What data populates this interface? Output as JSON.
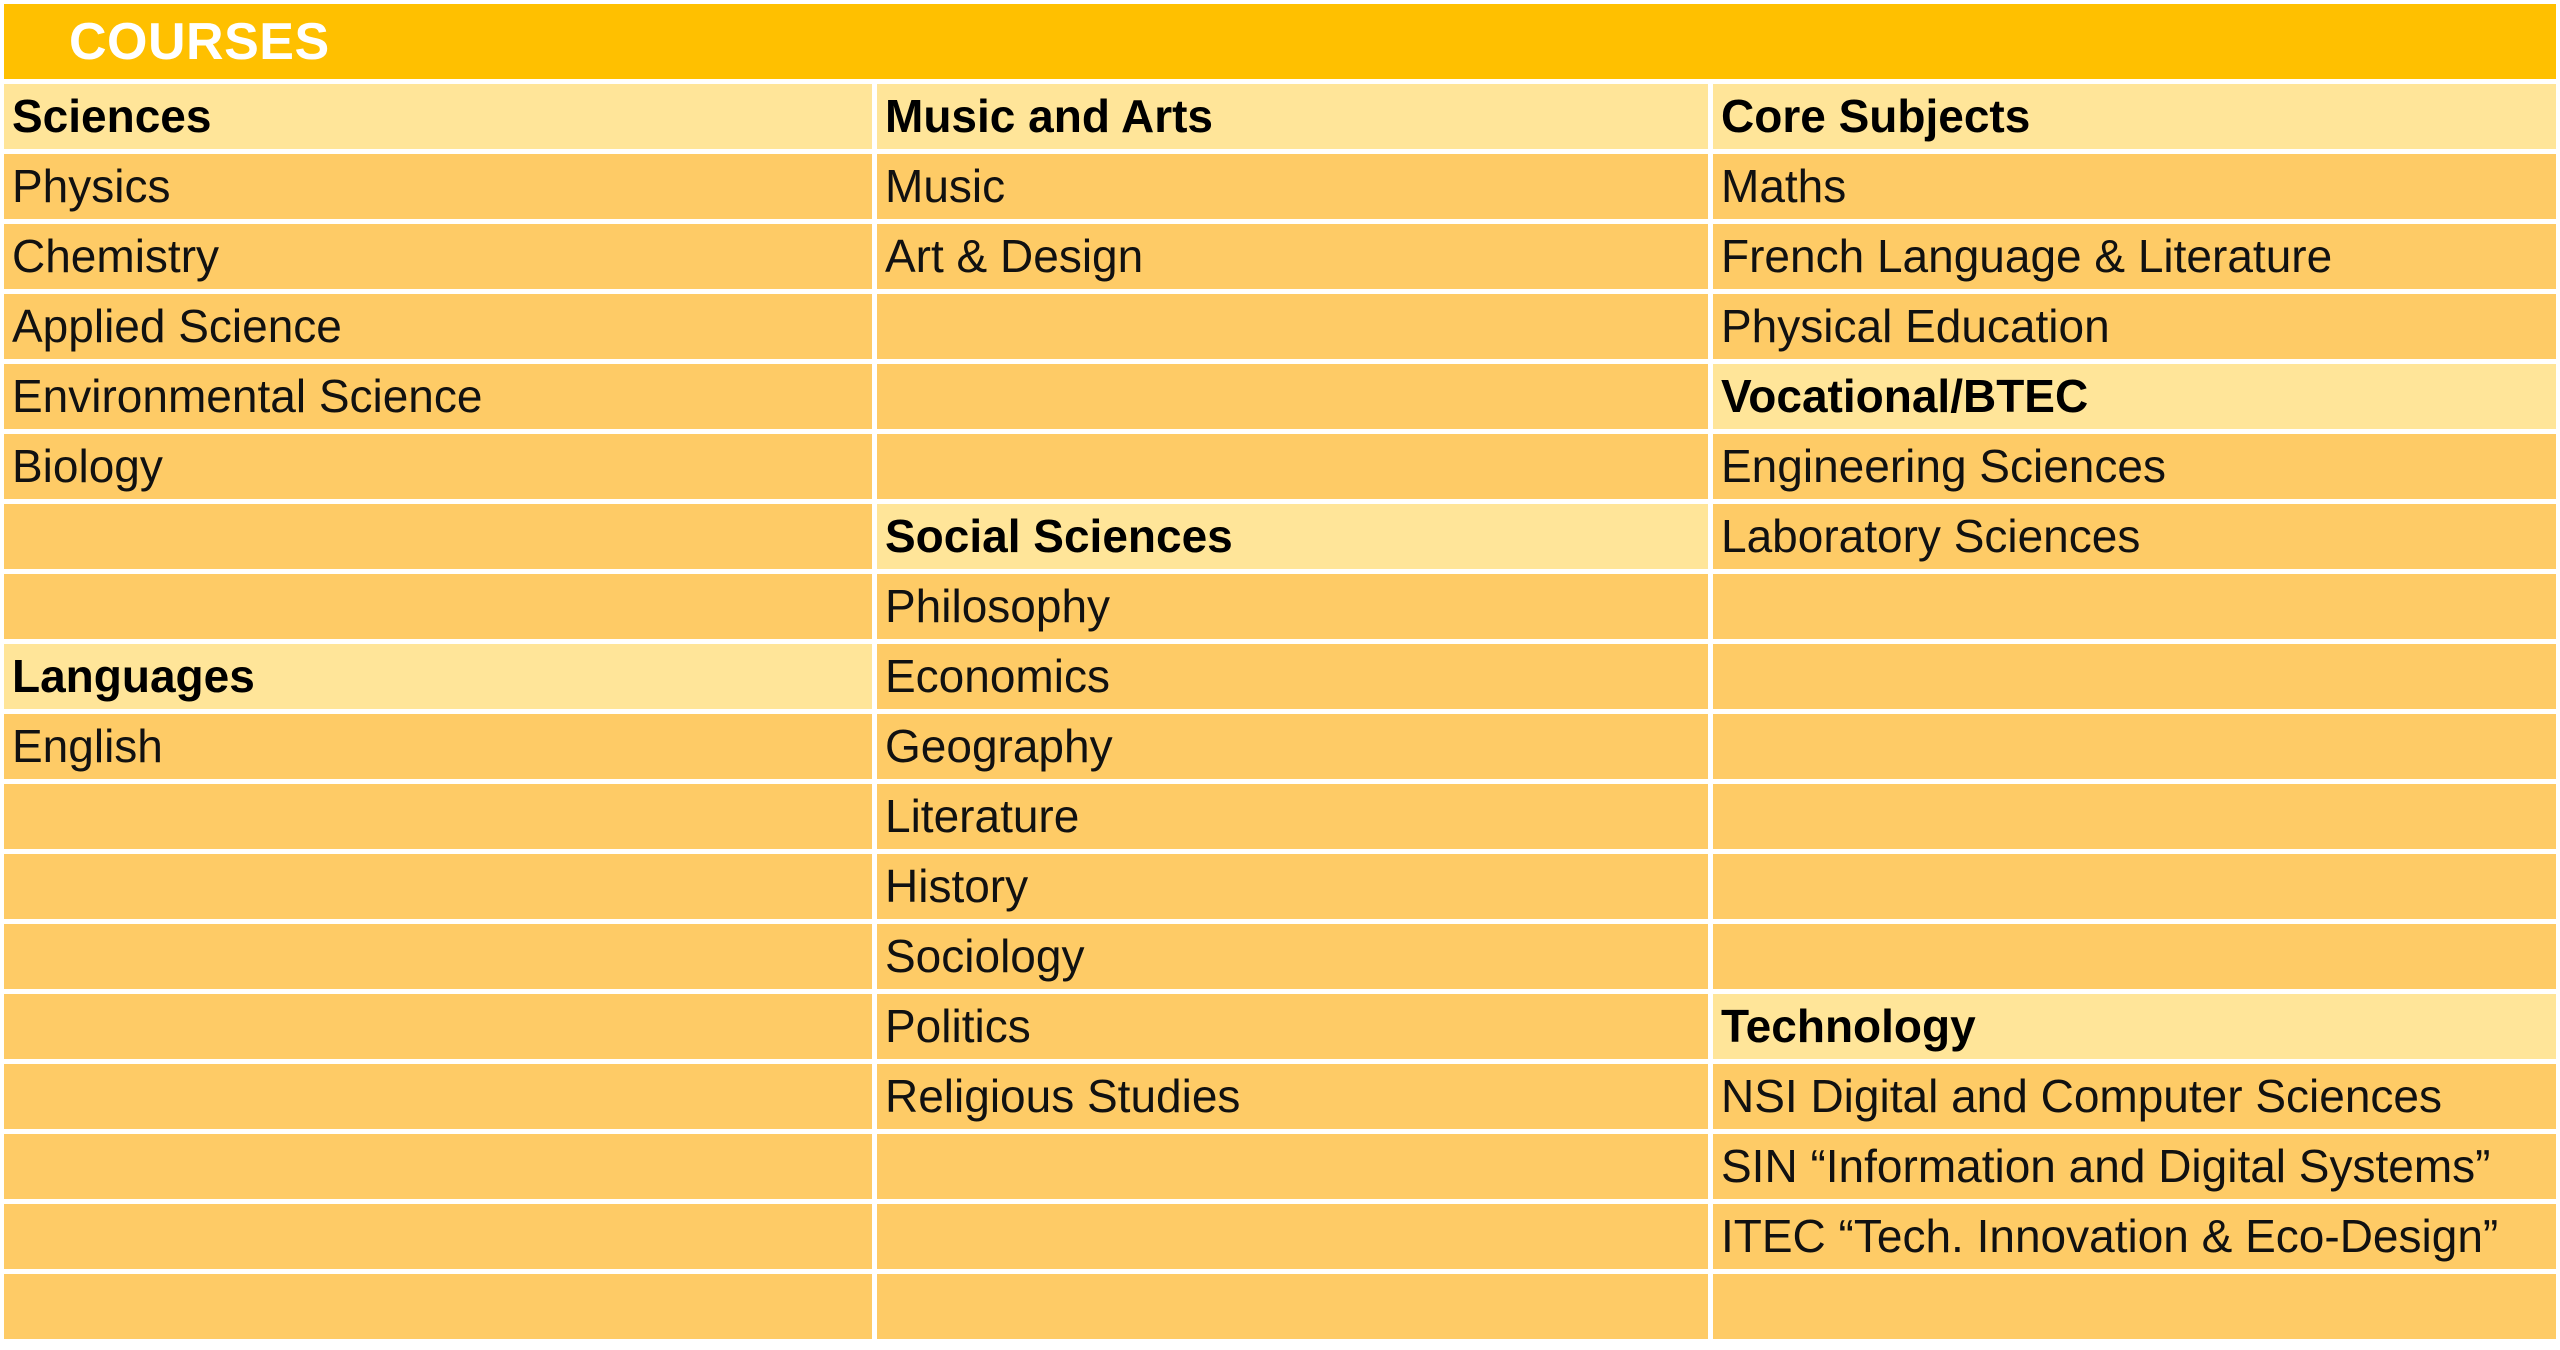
{
  "title": "COURSES",
  "rows": [
    [
      {
        "text": "Sciences",
        "heading": true
      },
      {
        "text": "Music and Arts",
        "heading": true
      },
      {
        "text": "Core Subjects",
        "heading": true
      }
    ],
    [
      {
        "text": "Physics"
      },
      {
        "text": "Music"
      },
      {
        "text": "Maths"
      }
    ],
    [
      {
        "text": "Chemistry"
      },
      {
        "text": "Art & Design"
      },
      {
        "text": "French Language & Literature"
      }
    ],
    [
      {
        "text": "Applied Science"
      },
      {
        "text": ""
      },
      {
        "text": "Physical Education"
      }
    ],
    [
      {
        "text": "Environmental Science"
      },
      {
        "text": ""
      },
      {
        "text": "Vocational/BTEC",
        "heading": true
      }
    ],
    [
      {
        "text": "Biology"
      },
      {
        "text": ""
      },
      {
        "text": "Engineering Sciences"
      }
    ],
    [
      {
        "text": ""
      },
      {
        "text": "Social Sciences",
        "heading": true
      },
      {
        "text": "Laboratory Sciences"
      }
    ],
    [
      {
        "text": ""
      },
      {
        "text": "Philosophy"
      },
      {
        "text": ""
      }
    ],
    [
      {
        "text": "Languages",
        "heading": true
      },
      {
        "text": "Economics"
      },
      {
        "text": ""
      }
    ],
    [
      {
        "text": "English"
      },
      {
        "text": "Geography"
      },
      {
        "text": ""
      }
    ],
    [
      {
        "text": ""
      },
      {
        "text": "Literature"
      },
      {
        "text": ""
      }
    ],
    [
      {
        "text": ""
      },
      {
        "text": "History"
      },
      {
        "text": ""
      }
    ],
    [
      {
        "text": ""
      },
      {
        "text": "Sociology"
      },
      {
        "text": ""
      }
    ],
    [
      {
        "text": ""
      },
      {
        "text": "Politics"
      },
      {
        "text": "Technology",
        "heading": true
      }
    ],
    [
      {
        "text": ""
      },
      {
        "text": "Religious Studies"
      },
      {
        "text": "NSI Digital and Computer Sciences"
      }
    ],
    [
      {
        "text": ""
      },
      {
        "text": ""
      },
      {
        "text": "SIN “Information and Digital Systems”"
      }
    ],
    [
      {
        "text": ""
      },
      {
        "text": ""
      },
      {
        "text": "ITEC “Tech. Innovation & Eco-Design”"
      }
    ],
    [
      {
        "text": ""
      },
      {
        "text": ""
      },
      {
        "text": ""
      }
    ]
  ],
  "colors": {
    "title_bg": "#FFC000",
    "heading_bg": "#FFE599",
    "cell_bg": "#FECB66"
  }
}
